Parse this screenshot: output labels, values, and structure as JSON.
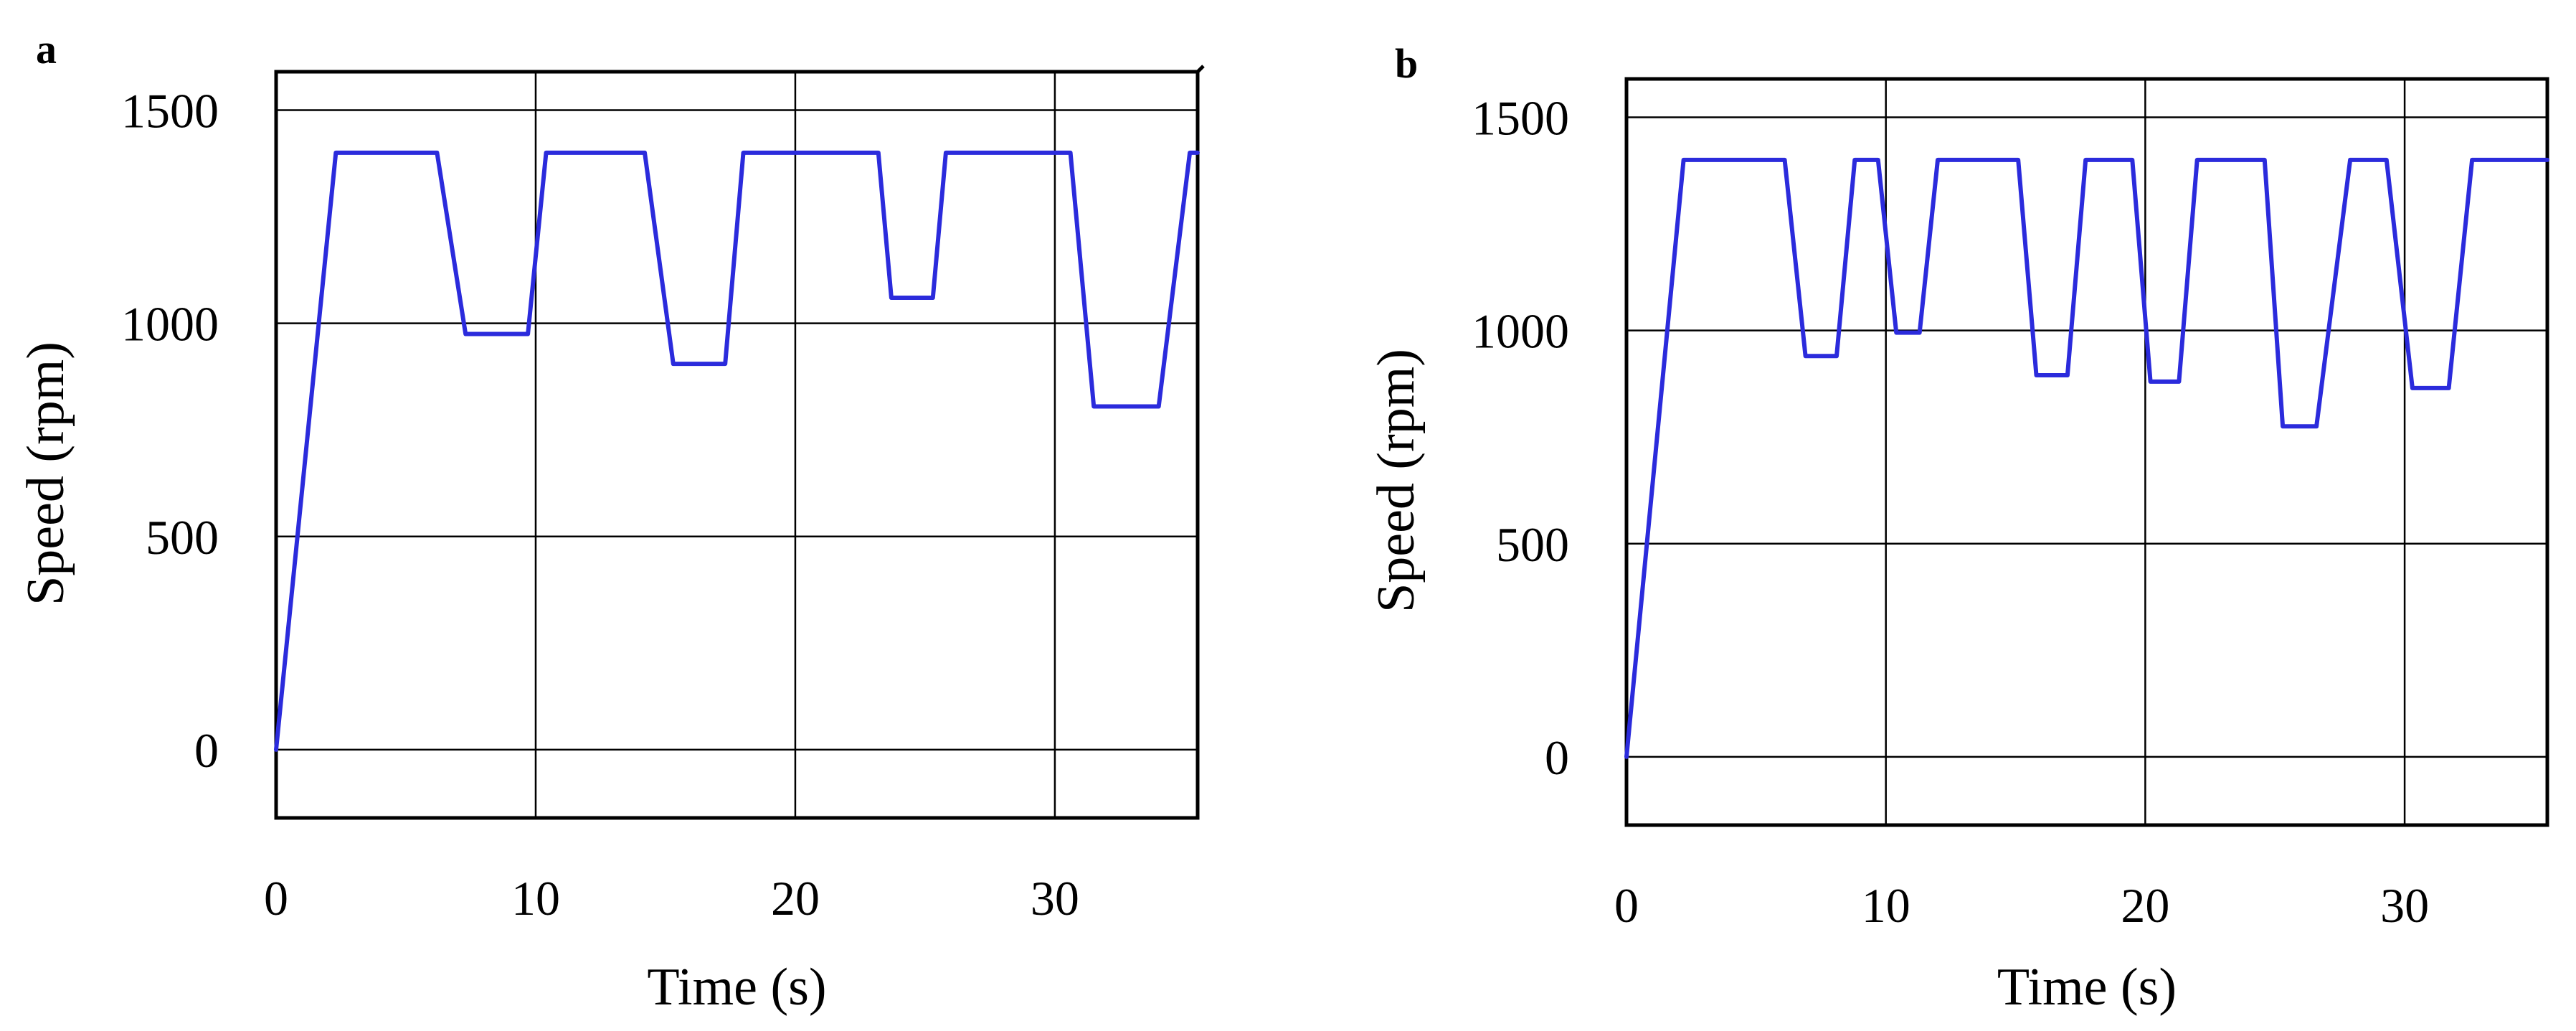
{
  "chart_data": [
    {
      "type": "line",
      "panel_label": "a",
      "xlabel": "Time (s)",
      "ylabel": "Speed (rpm)",
      "xlim": [
        0,
        35.5
      ],
      "ylim": [
        -160,
        1590
      ],
      "xticks": [
        0,
        10,
        20,
        30
      ],
      "yticks": [
        0,
        500,
        1000,
        1500
      ],
      "grid": true,
      "color": "#2b2bdc",
      "series": [
        {
          "x": [
            0,
            2.3,
            2.6,
            6.2,
            7.3,
            9.7,
            10.4,
            14.2,
            15.3,
            17.3,
            18.0,
            23.2,
            23.7,
            25.3,
            25.8,
            30.6,
            31.5,
            34.0,
            35.2,
            35.5
          ],
          "y": [
            0,
            1400,
            1400,
            1400,
            975,
            975,
            1400,
            1400,
            905,
            905,
            1400,
            1400,
            1060,
            1060,
            1400,
            1400,
            805,
            805,
            1400,
            1400
          ]
        }
      ]
    },
    {
      "type": "line",
      "panel_label": "b",
      "xlabel": "Time (s)",
      "ylabel": "Speed (rpm)",
      "xlim": [
        0,
        35.5
      ],
      "ylim": [
        -160,
        1590
      ],
      "xticks": [
        0,
        10,
        20,
        30
      ],
      "yticks": [
        0,
        500,
        1000,
        1500
      ],
      "grid": true,
      "color": "#2b2bdc",
      "series": [
        {
          "x": [
            0,
            2.2,
            2.5,
            6.1,
            6.9,
            8.1,
            8.8,
            9.7,
            10.4,
            11.3,
            12.0,
            15.1,
            15.8,
            17.0,
            17.7,
            19.5,
            20.2,
            21.3,
            22.0,
            23.0,
            24.6,
            25.3,
            26.6,
            27.9,
            29.3,
            30.3,
            31.7,
            32.6,
            35.5
          ],
          "y": [
            0,
            1400,
            1400,
            1400,
            940,
            940,
            1400,
            1400,
            995,
            995,
            1400,
            1400,
            895,
            895,
            1400,
            1400,
            880,
            880,
            1400,
            1400,
            1400,
            775,
            775,
            1400,
            1400,
            865,
            865,
            1400,
            1400
          ]
        }
      ]
    }
  ]
}
